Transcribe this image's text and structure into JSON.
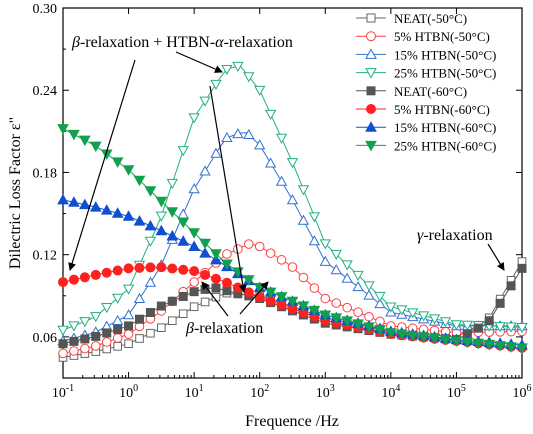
{
  "chart_data": {
    "type": "scatter",
    "xlabel": "Frequence /Hz",
    "ylabel": "Dilectric Loss Factor ε\"",
    "xscale": "log",
    "xlim": [
      0.1,
      1000000
    ],
    "ylim": [
      0.03,
      0.3
    ],
    "xticks": [
      {
        "value": 0.1,
        "base": "10",
        "exp": "-1"
      },
      {
        "value": 1,
        "base": "10",
        "exp": "0"
      },
      {
        "value": 10,
        "base": "10",
        "exp": "1"
      },
      {
        "value": 100,
        "base": "10",
        "exp": "2"
      },
      {
        "value": 1000,
        "base": "10",
        "exp": "3"
      },
      {
        "value": 10000,
        "base": "10",
        "exp": "4"
      },
      {
        "value": 100000,
        "base": "10",
        "exp": "5"
      },
      {
        "value": 1000000,
        "base": "10",
        "exp": "6"
      }
    ],
    "yticks": [
      {
        "value": 0.06,
        "label": "0.06"
      },
      {
        "value": 0.12,
        "label": "0.12"
      },
      {
        "value": 0.18,
        "label": "0.18"
      },
      {
        "value": 0.24,
        "label": "0.24"
      },
      {
        "value": 0.3,
        "label": "0.30"
      }
    ],
    "grid": false,
    "legend_position": "top-right",
    "series": [
      {
        "name": "NEAT(-50°C)",
        "color": "#666666",
        "marker": "square",
        "filled": false,
        "x": [
          0.1,
          0.3,
          1,
          3,
          10,
          30,
          100,
          1000,
          10000,
          100000,
          300000,
          1000000
        ],
        "y": [
          0.045,
          0.049,
          0.055,
          0.066,
          0.082,
          0.092,
          0.09,
          0.074,
          0.064,
          0.06,
          0.072,
          0.115
        ]
      },
      {
        "name": "5% HTBN(-50°C)",
        "color": "#ff4040",
        "marker": "circle",
        "filled": false,
        "x": [
          0.1,
          0.3,
          1,
          3,
          10,
          30,
          70,
          100,
          300,
          1000,
          10000,
          100000,
          1000000
        ],
        "y": [
          0.048,
          0.053,
          0.062,
          0.078,
          0.1,
          0.12,
          0.128,
          0.126,
          0.112,
          0.088,
          0.068,
          0.063,
          0.064
        ]
      },
      {
        "name": "15% HTBN(-50°C)",
        "color": "#3070d0",
        "marker": "triangle-up",
        "filled": false,
        "x": [
          0.1,
          0.3,
          1,
          3,
          10,
          30,
          60,
          100,
          300,
          1000,
          10000,
          100000,
          1000000
        ],
        "y": [
          0.057,
          0.063,
          0.076,
          0.11,
          0.168,
          0.205,
          0.21,
          0.2,
          0.162,
          0.115,
          0.078,
          0.068,
          0.068
        ]
      },
      {
        "name": "25% HTBN(-50°C)",
        "color": "#20b080",
        "marker": "triangle-down",
        "filled": false,
        "x": [
          0.1,
          0.3,
          1,
          3,
          10,
          30,
          50,
          100,
          300,
          1000,
          10000,
          100000,
          1000000
        ],
        "y": [
          0.065,
          0.074,
          0.095,
          0.145,
          0.22,
          0.255,
          0.258,
          0.24,
          0.19,
          0.128,
          0.082,
          0.069,
          0.067
        ]
      },
      {
        "name": "NEAT(-60°C)",
        "color": "#555555",
        "marker": "square",
        "filled": true,
        "x": [
          0.1,
          0.3,
          1,
          3,
          10,
          20,
          100,
          1000,
          10000,
          100000,
          300000,
          1000000
        ],
        "y": [
          0.055,
          0.06,
          0.068,
          0.082,
          0.093,
          0.096,
          0.088,
          0.07,
          0.062,
          0.058,
          0.07,
          0.11
        ]
      },
      {
        "name": "5% HTBN(-60°C)",
        "color": "#ff2020",
        "marker": "circle",
        "filled": true,
        "x": [
          0.1,
          0.3,
          1,
          3,
          10,
          30,
          100,
          1000,
          10000,
          100000,
          1000000
        ],
        "y": [
          0.1,
          0.105,
          0.11,
          0.111,
          0.108,
          0.1,
          0.089,
          0.072,
          0.062,
          0.057,
          0.052
        ]
      },
      {
        "name": "15% HTBN(-60°C)",
        "color": "#1050d0",
        "marker": "triangle-up",
        "filled": true,
        "x": [
          0.1,
          0.3,
          1,
          3,
          10,
          30,
          100,
          1000,
          10000,
          100000,
          1000000
        ],
        "y": [
          0.16,
          0.155,
          0.148,
          0.138,
          0.126,
          0.112,
          0.096,
          0.076,
          0.064,
          0.058,
          0.054
        ]
      },
      {
        "name": "25% HTBN(-60°C)",
        "color": "#10a050",
        "marker": "triangle-down",
        "filled": true,
        "x": [
          0.1,
          0.3,
          1,
          3,
          10,
          30,
          100,
          1000,
          10000,
          100000,
          1000000
        ],
        "y": [
          0.212,
          0.2,
          0.182,
          0.16,
          0.136,
          0.114,
          0.096,
          0.076,
          0.063,
          0.057,
          0.052
        ]
      }
    ],
    "annotations": [
      {
        "greek": "β",
        "text": "-relaxation + HTBN-",
        "greek2": "α",
        "text2": "-relaxation"
      },
      {
        "greek": "β",
        "text": "-relaxation"
      },
      {
        "greek": "γ",
        "text": "-relaxation"
      }
    ]
  }
}
